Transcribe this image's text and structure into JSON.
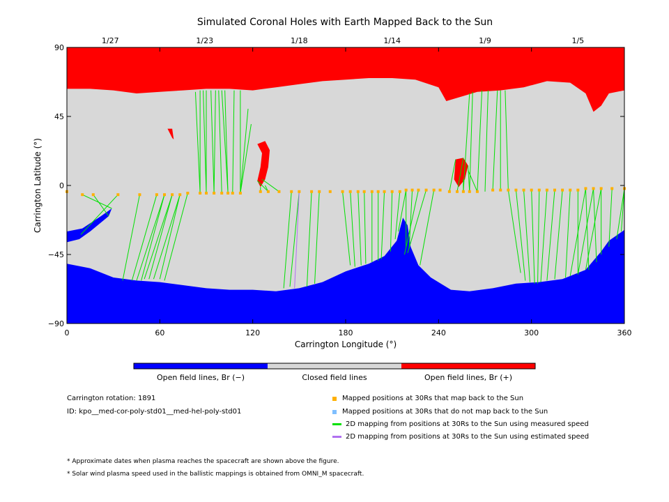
{
  "chart_data": {
    "type": "map",
    "title": "Simulated Coronal Holes with Earth Mapped Back to the Sun",
    "xlabel": "Carrington Longitude (°)",
    "ylabel": "Carrington Latitude (°)",
    "xlim": [
      0,
      360
    ],
    "ylim": [
      -90,
      90
    ],
    "xticks": [
      "0",
      "60",
      "120",
      "180",
      "240",
      "300",
      "360"
    ],
    "xtick_values": [
      0,
      60,
      120,
      180,
      240,
      300,
      360
    ],
    "yticks": [
      "90",
      "45",
      "0",
      "−45",
      "−90"
    ],
    "ytick_values": [
      90,
      45,
      0,
      -45,
      -90
    ],
    "top_axis": {
      "labels": [
        "1/27",
        "1/23",
        "1/18",
        "1/14",
        "1/9",
        "1/5"
      ],
      "longitudes": [
        28,
        89,
        150,
        210,
        270,
        330
      ]
    },
    "colors": {
      "open_negative": "#0000ff",
      "closed": "#d8d8d8",
      "open_positive": "#ff0000",
      "mapped_point": "#ffb000",
      "unmapped_point": "#7fbfff",
      "measured_speed_line": "#00e000",
      "estimated_speed_line": "#b070f0"
    },
    "north_boundary": [
      [
        0,
        63
      ],
      [
        15,
        63
      ],
      [
        30,
        62
      ],
      [
        45,
        60
      ],
      [
        60,
        61
      ],
      [
        75,
        62
      ],
      [
        90,
        63
      ],
      [
        105,
        63
      ],
      [
        120,
        62
      ],
      [
        135,
        64
      ],
      [
        150,
        66
      ],
      [
        165,
        68
      ],
      [
        180,
        69
      ],
      [
        195,
        70
      ],
      [
        210,
        70
      ],
      [
        225,
        69
      ],
      [
        240,
        64
      ],
      [
        245,
        55
      ],
      [
        255,
        58
      ],
      [
        265,
        61
      ],
      [
        280,
        62
      ],
      [
        295,
        64
      ],
      [
        310,
        68
      ],
      [
        325,
        67
      ],
      [
        335,
        60
      ],
      [
        340,
        48
      ],
      [
        345,
        52
      ],
      [
        350,
        60
      ],
      [
        360,
        62
      ]
    ],
    "south_boundary": [
      [
        0,
        -51
      ],
      [
        15,
        -54
      ],
      [
        30,
        -60
      ],
      [
        45,
        -62
      ],
      [
        60,
        -63
      ],
      [
        75,
        -65
      ],
      [
        90,
        -67
      ],
      [
        105,
        -68
      ],
      [
        120,
        -68
      ],
      [
        135,
        -69
      ],
      [
        150,
        -67
      ],
      [
        165,
        -63
      ],
      [
        180,
        -56
      ],
      [
        195,
        -51
      ],
      [
        205,
        -46
      ],
      [
        213,
        -36
      ],
      [
        217,
        -21
      ],
      [
        220,
        -26
      ],
      [
        222,
        -40
      ],
      [
        227,
        -52
      ],
      [
        235,
        -60
      ],
      [
        248,
        -68
      ],
      [
        260,
        -69
      ],
      [
        275,
        -67
      ],
      [
        290,
        -64
      ],
      [
        305,
        -63
      ],
      [
        320,
        -61
      ],
      [
        335,
        -55
      ],
      [
        345,
        -43
      ],
      [
        350,
        -36
      ],
      [
        360,
        -29
      ]
    ],
    "blue_patch": [
      [
        0,
        -30
      ],
      [
        10,
        -28
      ],
      [
        22,
        -20
      ],
      [
        29,
        -15
      ],
      [
        27,
        -20
      ],
      [
        15,
        -30
      ],
      [
        8,
        -35
      ],
      [
        0,
        -37
      ]
    ],
    "red_patches": [
      [
        [
          123,
          27
        ],
        [
          128,
          29
        ],
        [
          131,
          23
        ],
        [
          130,
          12
        ],
        [
          128,
          4
        ],
        [
          125,
          -1
        ],
        [
          123,
          3
        ],
        [
          125,
          12
        ],
        [
          126,
          21
        ]
      ],
      [
        [
          251,
          17
        ],
        [
          256,
          18
        ],
        [
          259,
          13
        ],
        [
          257,
          4
        ],
        [
          253,
          -1
        ],
        [
          250,
          4
        ]
      ],
      [
        [
          65,
          37
        ],
        [
          68,
          37
        ],
        [
          69,
          30
        ],
        [
          68,
          31
        ]
      ]
    ],
    "mapped_points": [
      [
        0,
        -4
      ],
      [
        10,
        -6
      ],
      [
        17,
        -6
      ],
      [
        33,
        -6
      ],
      [
        47,
        -6
      ],
      [
        58,
        -6
      ],
      [
        63,
        -6
      ],
      [
        68,
        -6
      ],
      [
        73,
        -6
      ],
      [
        78,
        -5
      ],
      [
        86,
        -5
      ],
      [
        90,
        -5
      ],
      [
        95,
        -5
      ],
      [
        100,
        -5
      ],
      [
        104,
        -5
      ],
      [
        107,
        -5
      ],
      [
        112,
        -5
      ],
      [
        125,
        -4
      ],
      [
        130,
        -4
      ],
      [
        137,
        -4
      ],
      [
        145,
        -4
      ],
      [
        150,
        -4
      ],
      [
        158,
        -4
      ],
      [
        163,
        -4
      ],
      [
        170,
        -4
      ],
      [
        178,
        -4
      ],
      [
        183,
        -4
      ],
      [
        188,
        -4
      ],
      [
        192,
        -4
      ],
      [
        197,
        -4
      ],
      [
        201,
        -4
      ],
      [
        205,
        -4
      ],
      [
        210,
        -4
      ],
      [
        215,
        -4
      ],
      [
        219,
        -3
      ],
      [
        223,
        -3
      ],
      [
        227,
        -3
      ],
      [
        232,
        -3
      ],
      [
        237,
        -3
      ],
      [
        241,
        -3
      ],
      [
        247,
        -4
      ],
      [
        252,
        -4
      ],
      [
        256,
        -4
      ],
      [
        260,
        -4
      ],
      [
        265,
        -4
      ],
      [
        275,
        -3
      ],
      [
        280,
        -3
      ],
      [
        285,
        -3
      ],
      [
        290,
        -3
      ],
      [
        295,
        -3
      ],
      [
        300,
        -3
      ],
      [
        305,
        -3
      ],
      [
        310,
        -3
      ],
      [
        315,
        -3
      ],
      [
        320,
        -3
      ],
      [
        325,
        -3
      ],
      [
        330,
        -3
      ],
      [
        335,
        -2
      ],
      [
        340,
        -2
      ],
      [
        345,
        -2
      ],
      [
        352,
        -2
      ],
      [
        360,
        -2
      ]
    ],
    "measured_links": [
      [
        0,
        -4,
        0,
        -30
      ],
      [
        10,
        -6,
        29,
        -15
      ],
      [
        17,
        -6,
        27,
        -20
      ],
      [
        33,
        -6,
        9,
        -32
      ],
      [
        47,
        -6,
        36,
        -62
      ],
      [
        58,
        -6,
        42,
        -62
      ],
      [
        63,
        -6,
        45,
        -62
      ],
      [
        63,
        -6,
        48,
        -62
      ],
      [
        68,
        -6,
        50,
        -61
      ],
      [
        68,
        -6,
        53,
        -61
      ],
      [
        73,
        -6,
        56,
        -61
      ],
      [
        73,
        -6,
        60,
        -61
      ],
      [
        78,
        -5,
        63,
        -62
      ],
      [
        86,
        -5,
        83,
        61
      ],
      [
        86,
        -5,
        86,
        62
      ],
      [
        90,
        -5,
        88,
        62
      ],
      [
        90,
        -5,
        90,
        62
      ],
      [
        95,
        -5,
        93,
        62
      ],
      [
        95,
        -5,
        96,
        62
      ],
      [
        100,
        -5,
        98,
        62
      ],
      [
        104,
        -5,
        100,
        62
      ],
      [
        104,
        -5,
        102,
        62
      ],
      [
        107,
        -5,
        108,
        62
      ],
      [
        112,
        -5,
        112,
        62
      ],
      [
        112,
        -5,
        117,
        50
      ],
      [
        112,
        -5,
        119,
        40
      ],
      [
        125,
        -4,
        125,
        -1
      ],
      [
        130,
        -4,
        128,
        0
      ],
      [
        137,
        -4,
        126,
        4
      ],
      [
        130,
        -4,
        123,
        3
      ],
      [
        145,
        -4,
        140,
        -67
      ],
      [
        150,
        -4,
        144,
        -66
      ],
      [
        158,
        -4,
        155,
        -66
      ],
      [
        163,
        -4,
        160,
        -64
      ],
      [
        178,
        -4,
        183,
        -52
      ],
      [
        183,
        -4,
        186,
        -53
      ],
      [
        188,
        -4,
        190,
        -52
      ],
      [
        192,
        -4,
        193,
        -51
      ],
      [
        197,
        -4,
        197,
        -50
      ],
      [
        201,
        -4,
        201,
        -49
      ],
      [
        205,
        -4,
        203,
        -48
      ],
      [
        210,
        -4,
        209,
        -43
      ],
      [
        215,
        -4,
        212,
        -35
      ],
      [
        219,
        -3,
        214,
        -30
      ],
      [
        219,
        -3,
        219,
        -40
      ],
      [
        223,
        -3,
        221,
        -41
      ],
      [
        227,
        -3,
        218,
        -45
      ],
      [
        232,
        -3,
        220,
        -44
      ],
      [
        237,
        -3,
        228,
        -52
      ],
      [
        247,
        -4,
        251,
        17
      ],
      [
        252,
        -4,
        256,
        18
      ],
      [
        256,
        -4,
        256,
        4
      ],
      [
        260,
        -4,
        259,
        13
      ],
      [
        265,
        -4,
        259,
        10
      ],
      [
        256,
        -4,
        260,
        60
      ],
      [
        260,
        -4,
        262,
        61
      ],
      [
        265,
        -4,
        268,
        62
      ],
      [
        270,
        -4,
        272,
        62
      ],
      [
        275,
        -3,
        278,
        62
      ],
      [
        280,
        -3,
        280,
        62
      ],
      [
        285,
        -3,
        283,
        62
      ],
      [
        285,
        -3,
        293,
        -57
      ],
      [
        290,
        -3,
        296,
        -62
      ],
      [
        295,
        -3,
        299,
        -63
      ],
      [
        300,
        -3,
        302,
        -64
      ],
      [
        305,
        -3,
        304,
        -64
      ],
      [
        310,
        -3,
        306,
        -63
      ],
      [
        315,
        -3,
        310,
        -62
      ],
      [
        320,
        -3,
        315,
        -61
      ],
      [
        325,
        -3,
        322,
        -60
      ],
      [
        330,
        -3,
        330,
        -58
      ],
      [
        335,
        -2,
        337,
        -55
      ],
      [
        340,
        -2,
        342,
        -50
      ],
      [
        345,
        -2,
        345,
        -45
      ],
      [
        352,
        -2,
        350,
        -40
      ],
      [
        360,
        -2,
        355,
        -35
      ],
      [
        360,
        -2,
        358,
        -30
      ],
      [
        345,
        -2,
        335,
        -55
      ],
      [
        340,
        -2,
        330,
        -58
      ],
      [
        335,
        -2,
        325,
        -59
      ]
    ],
    "estimated_links": [
      [
        150,
        -4,
        147,
        -67
      ]
    ],
    "colorbar": {
      "segments": [
        "Open field lines, Br (−)",
        "Closed field lines",
        "Open field lines, Br (+)"
      ]
    },
    "legend": [
      {
        "label": "Mapped positions at 30Rs that map back to the Sun",
        "kind": "square",
        "color": "#ffb000"
      },
      {
        "label": "Mapped positions at 30Rs that do not map back to the Sun",
        "kind": "square",
        "color": "#7fbfff"
      },
      {
        "label": "2D mapping from positions at 30Rs to the Sun using measured speed",
        "kind": "line",
        "color": "#00e000"
      },
      {
        "label": "2D mapping from positions at 30Rs to the Sun using estimated speed",
        "kind": "line",
        "color": "#b070f0"
      }
    ]
  },
  "info": {
    "rotation": "Carrington rotation: 1891",
    "id": "ID: kpo__med-cor-poly-std01__med-hel-poly-std01"
  },
  "notes": [
    "* Approximate dates when plasma reaches the spacecraft are shown above the figure.",
    "* Solar wind plasma speed used in the ballistic mappings is obtained from OMNI_M spacecraft."
  ]
}
